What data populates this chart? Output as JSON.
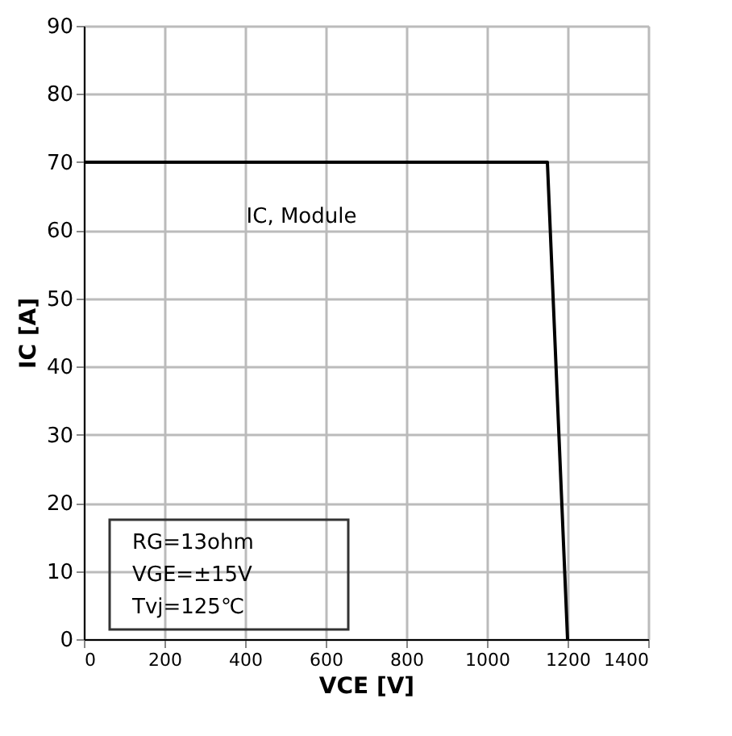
{
  "chart_data": {
    "type": "line",
    "x": [
      0,
      1150,
      1200
    ],
    "series": [
      {
        "color": "#000000",
        "values": [
          70,
          70,
          0
        ]
      }
    ],
    "xlabel": "VCE [V]",
    "ylabel": "IC [A]",
    "xlim": [
      0,
      1400
    ],
    "xticks": [
      0,
      200,
      400,
      600,
      800,
      1000,
      1200,
      1400
    ],
    "ylim": [
      0,
      90
    ],
    "yticks": [
      0,
      10,
      20,
      30,
      40,
      50,
      60,
      70,
      80,
      90
    ],
    "grid": true,
    "annotations": [
      "IC, Module",
      "RG=13ohm",
      "VGE=±15V",
      "Tvj=125℃"
    ]
  }
}
